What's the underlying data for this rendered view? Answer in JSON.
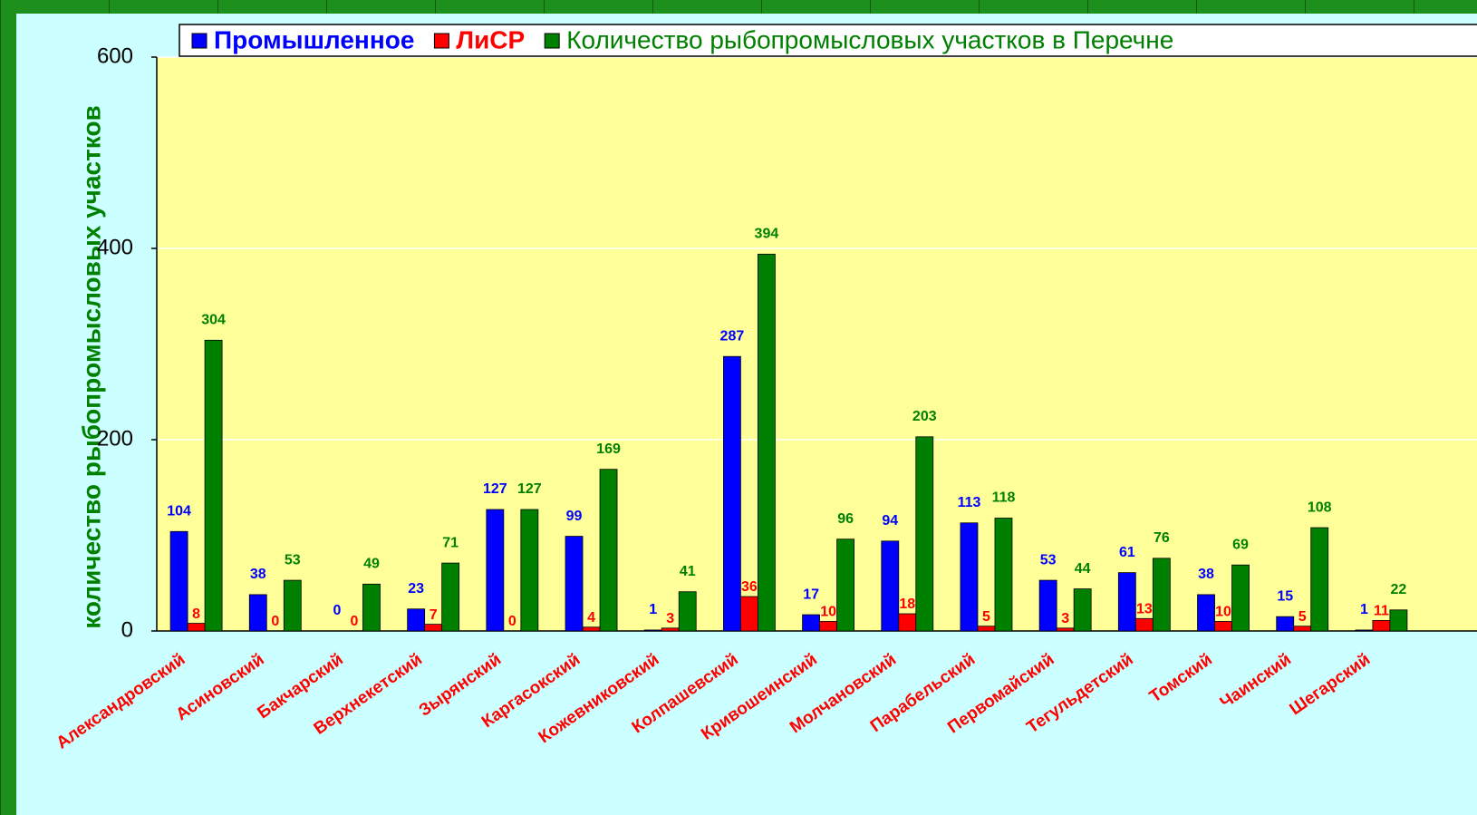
{
  "chart_data": {
    "type": "bar",
    "y_axis_label": "количество рыбопромысловых участков",
    "categories": [
      "Александровский",
      "Асиновский",
      "Бакчарский",
      "Верхнекетский",
      "Зырянский",
      "Каргасокский",
      "Кожевниковский",
      "Колпашевский",
      "Кривошеинский",
      "Молчановский",
      "Парабельский",
      "Первомайский",
      "Тегульдетский",
      "Томский",
      "Чаинский",
      "Шегарский"
    ],
    "series": [
      {
        "name": "Промышленное",
        "color": "#0000ff",
        "label_color": "#0000ff",
        "values": [
          104,
          38,
          0,
          23,
          127,
          99,
          1,
          287,
          17,
          94,
          113,
          53,
          61,
          38,
          15,
          1
        ]
      },
      {
        "name": "ЛиСР",
        "color": "#ff0000",
        "label_color": "#ff0000",
        "values": [
          8,
          0,
          0,
          7,
          0,
          4,
          3,
          36,
          10,
          18,
          5,
          3,
          13,
          10,
          5,
          11
        ]
      },
      {
        "name": "Количество рыбопромысловых участков в Перечне",
        "color": "#008000",
        "label_color": "#008000",
        "values": [
          304,
          53,
          49,
          71,
          127,
          169,
          41,
          394,
          96,
          203,
          118,
          44,
          76,
          69,
          108,
          22
        ]
      }
    ],
    "ylim": [
      0,
      600
    ],
    "yticks": [
      0,
      200,
      400,
      600
    ],
    "grid": true
  }
}
